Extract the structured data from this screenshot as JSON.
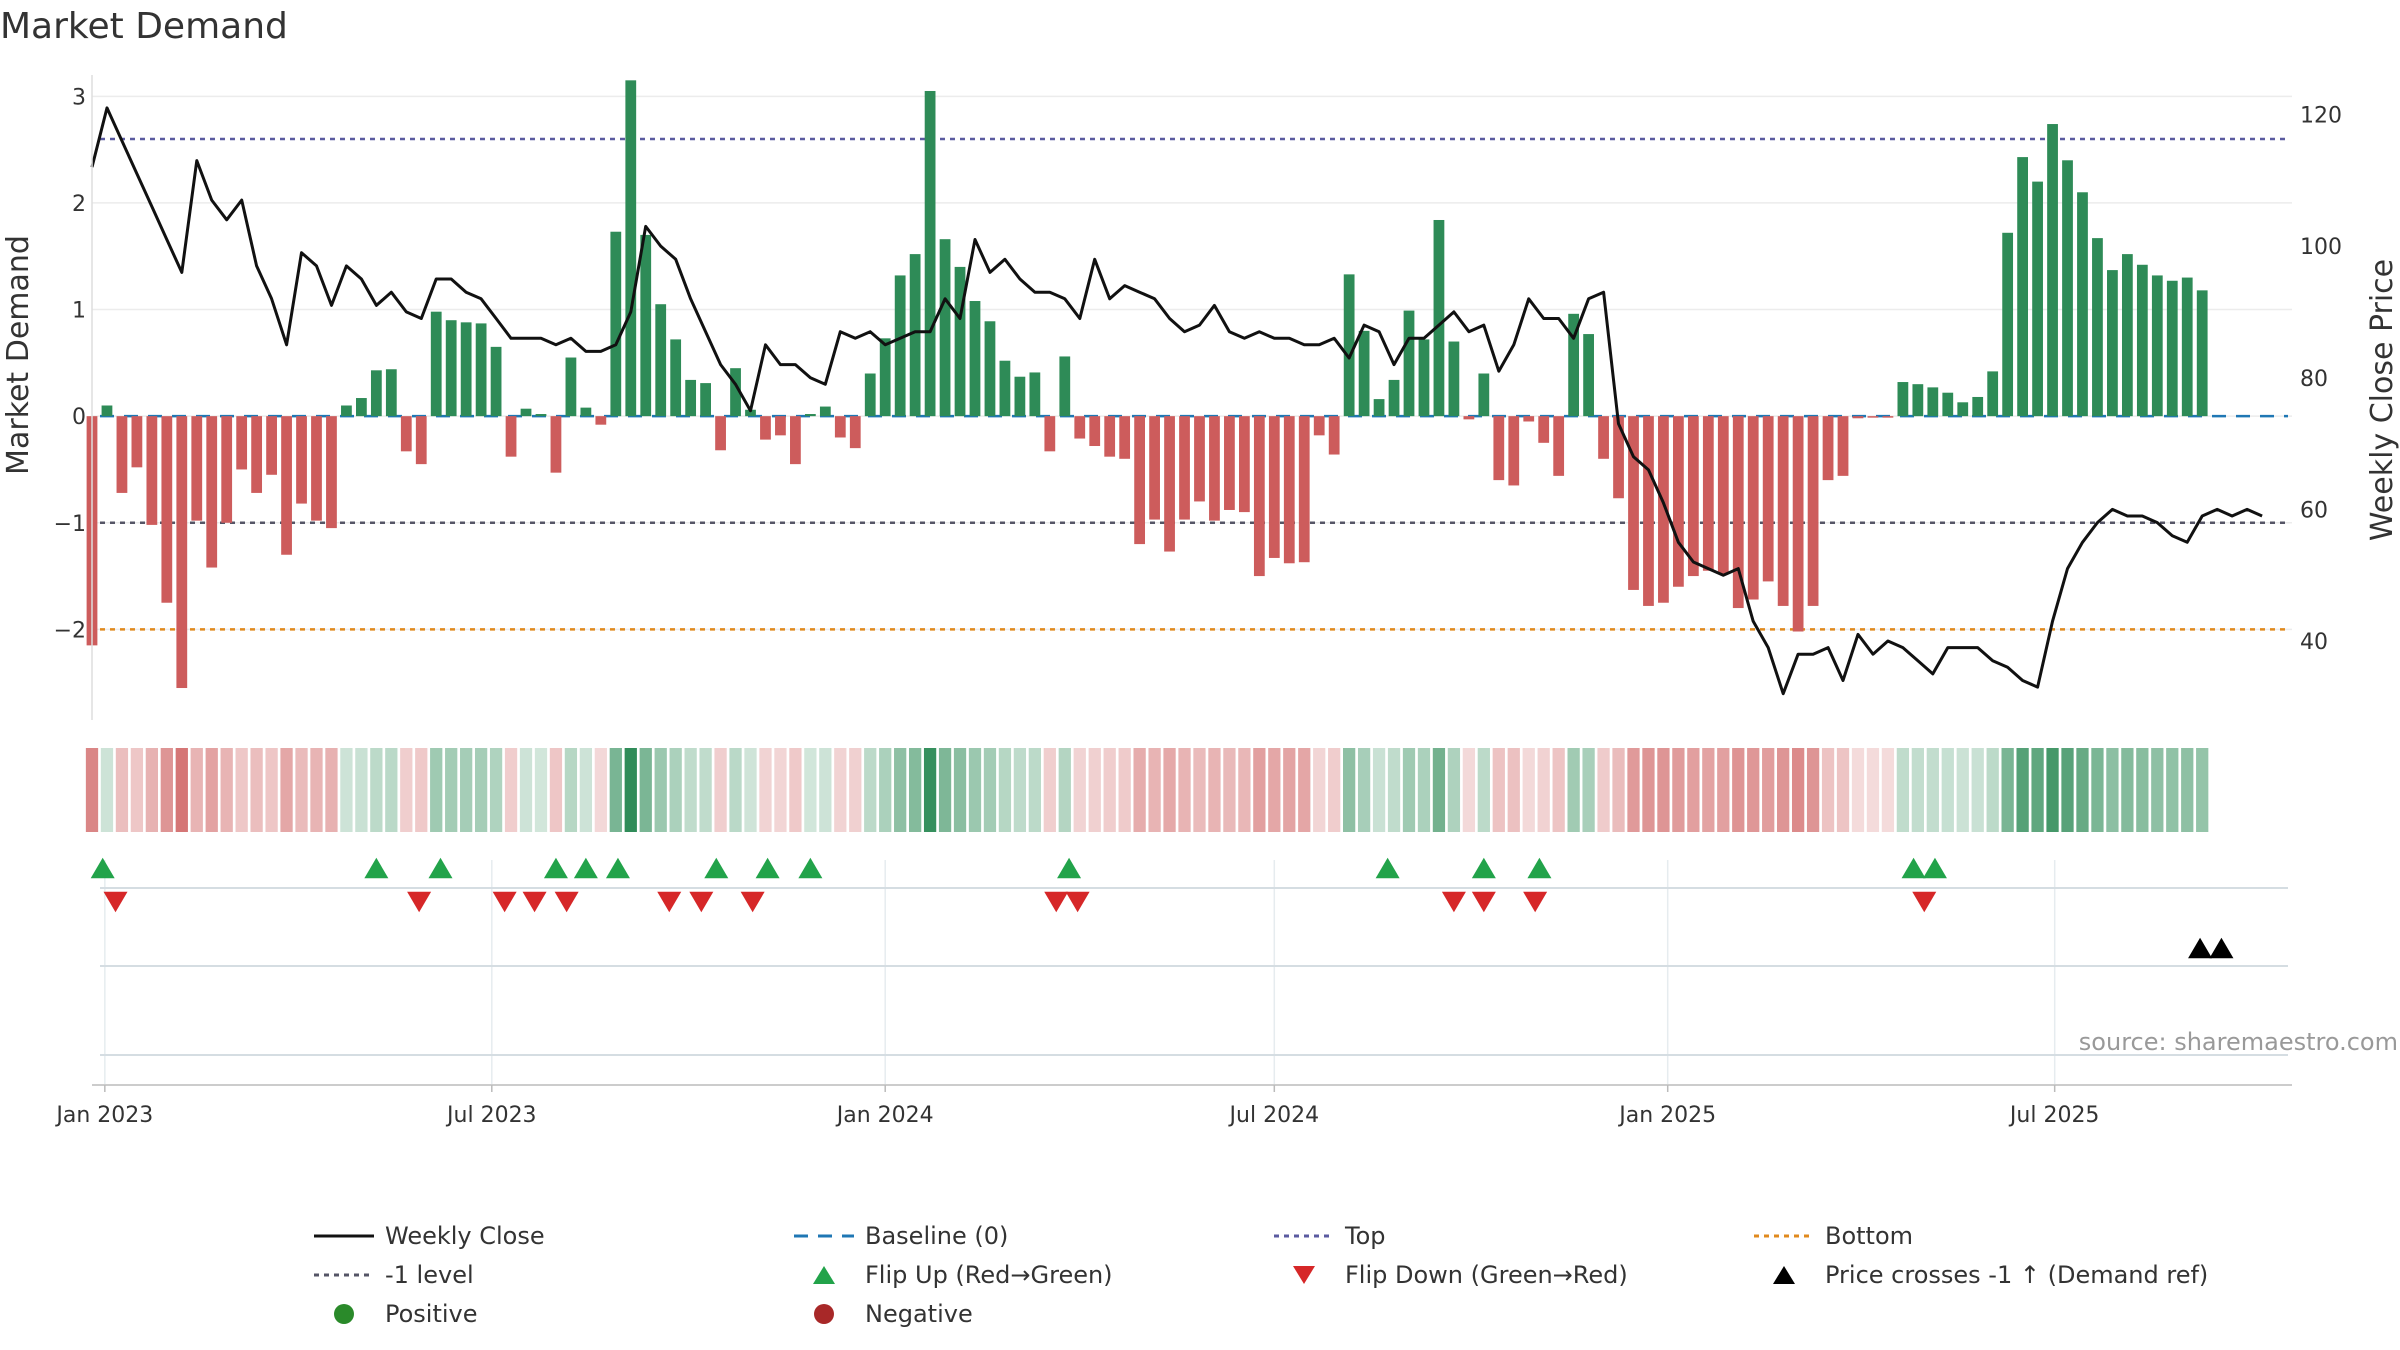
{
  "colors": {
    "positive": "#2e8b57",
    "negative": "#cd5c5c",
    "price": "#111111",
    "baseline": "#1f77b4",
    "top": "#5a5aa0",
    "bottom": "#e08a1e",
    "minus1": "#555566",
    "flip_up": "#22a34a",
    "flip_down": "#d62728",
    "cross": "#000000"
  },
  "chart_data": {
    "type": "bar",
    "title": "Market Demand",
    "ylabel": "Market Demand",
    "y2label": "Weekly Close Price",
    "source": "source: sharemaestro.com",
    "ylim": [
      -2.85,
      3.2
    ],
    "y2lim": [
      28,
      126
    ],
    "yticks": [
      "3",
      "2",
      "1",
      "0",
      "−1",
      "−2"
    ],
    "y2ticks": [
      "120",
      "100",
      "80",
      "60",
      "40"
    ],
    "xlim": [
      "2022-12-26",
      "2025-10-20"
    ],
    "xticks": [
      {
        "date": "2023-01-01",
        "label": "Jan 2023"
      },
      {
        "date": "2023-07-01",
        "label": "Jul 2023"
      },
      {
        "date": "2024-01-01",
        "label": "Jan 2024"
      },
      {
        "date": "2024-07-01",
        "label": "Jul 2024"
      },
      {
        "date": "2025-01-01",
        "label": "Jan 2025"
      },
      {
        "date": "2025-07-01",
        "label": "Jul 2025"
      }
    ],
    "reference_lines": {
      "top": 2.6,
      "bottom": -2.0,
      "minus1": -1.0,
      "baseline": 0
    },
    "start_date": "2022-12-26",
    "week_step_days": 7,
    "demand": [
      -2.15,
      0.1,
      -0.72,
      -0.48,
      -1.02,
      -1.75,
      -2.55,
      -0.98,
      -1.42,
      -1.0,
      -0.5,
      -0.72,
      -0.55,
      -1.3,
      -0.82,
      -0.98,
      -1.05,
      0.1,
      0.17,
      0.43,
      0.44,
      -0.33,
      -0.45,
      0.98,
      0.9,
      0.88,
      0.87,
      0.65,
      -0.38,
      0.07,
      0.02,
      -0.53,
      0.55,
      0.08,
      -0.08,
      1.73,
      3.15,
      1.7,
      1.05,
      0.72,
      0.34,
      0.31,
      -0.32,
      0.45,
      0.06,
      -0.22,
      -0.18,
      -0.45,
      0.02,
      0.09,
      -0.2,
      -0.3,
      0.4,
      0.73,
      1.32,
      1.52,
      3.05,
      1.66,
      1.4,
      1.08,
      0.89,
      0.52,
      0.37,
      0.41,
      -0.33,
      0.56,
      -0.21,
      -0.28,
      -0.38,
      -0.4,
      -1.2,
      -0.97,
      -1.27,
      -0.97,
      -0.8,
      -0.98,
      -0.88,
      -0.9,
      -1.5,
      -1.33,
      -1.38,
      -1.37,
      -0.18,
      -0.36,
      1.33,
      0.8,
      0.16,
      0.34,
      0.99,
      0.72,
      1.84,
      0.7,
      -0.03,
      0.4,
      -0.6,
      -0.65,
      -0.05,
      -0.25,
      -0.56,
      0.96,
      0.77,
      -0.4,
      -0.77,
      -1.63,
      -1.78,
      -1.75,
      -1.6,
      -1.5,
      -1.45,
      -1.48,
      -1.8,
      -1.72,
      -1.55,
      -1.78,
      -2.02,
      -1.78,
      -0.6,
      -0.56,
      -0.02,
      -0.01,
      -0.01,
      0.32,
      0.3,
      0.27,
      0.22,
      0.13,
      0.18,
      0.42,
      1.72,
      2.43,
      2.2,
      2.74,
      2.4,
      2.1,
      1.67,
      1.37,
      1.52,
      1.42,
      1.32,
      1.27,
      1.3,
      1.18
    ],
    "close": [
      112,
      121,
      116,
      111,
      106,
      101,
      96,
      113,
      107,
      104,
      107,
      97,
      92,
      85,
      99,
      97,
      91,
      97,
      95,
      91,
      93,
      90,
      89,
      95,
      95,
      93,
      92,
      89,
      86,
      86,
      86,
      85,
      86,
      84,
      84,
      85,
      90,
      103,
      100,
      98,
      92,
      87,
      82,
      79,
      75,
      85,
      82,
      82,
      80,
      79,
      87,
      86,
      87,
      85,
      86,
      87,
      87,
      92,
      89,
      101,
      96,
      98,
      95,
      93,
      93,
      92,
      89,
      98,
      92,
      94,
      93,
      92,
      89,
      87,
      88,
      91,
      87,
      86,
      87,
      86,
      86,
      85,
      85,
      86,
      83,
      88,
      87,
      82,
      86,
      86,
      88,
      90,
      87,
      88,
      81,
      85,
      92,
      89,
      89,
      86,
      92,
      93,
      73,
      68,
      66,
      61,
      55,
      52,
      51,
      50,
      51,
      43,
      39,
      32,
      38,
      38,
      39,
      34,
      41,
      38,
      40,
      39,
      37,
      35,
      39,
      39,
      39,
      37,
      36,
      34,
      33,
      43,
      51,
      55,
      58,
      60,
      59,
      59,
      58,
      56,
      55,
      59,
      60,
      59,
      60,
      59
    ],
    "flip_up_dates": [
      "2022-12-31",
      "2023-05-08",
      "2023-06-07",
      "2023-07-31",
      "2023-08-14",
      "2023-08-29",
      "2023-10-14",
      "2023-11-07",
      "2023-11-27",
      "2024-03-27",
      "2024-08-23",
      "2024-10-07",
      "2024-11-02",
      "2025-04-26",
      "2025-05-06"
    ],
    "flip_down_dates": [
      "2023-01-06",
      "2023-05-28",
      "2023-07-07",
      "2023-07-21",
      "2023-08-05",
      "2023-09-22",
      "2023-10-07",
      "2023-10-31",
      "2024-03-21",
      "2024-03-31",
      "2024-09-23",
      "2024-10-07",
      "2024-10-31",
      "2025-05-01"
    ],
    "cross_up_dates": [
      "2025-09-07",
      "2025-09-17"
    ]
  },
  "legend": [
    {
      "label": "Weekly Close",
      "symbol": "line-solid",
      "color": "#111111"
    },
    {
      "label": "Baseline (0)",
      "symbol": "line-dashed",
      "color": "#1f77b4"
    },
    {
      "label": "Top",
      "symbol": "line-dotted",
      "color": "#5a5aa0"
    },
    {
      "label": "Bottom",
      "symbol": "line-dotted",
      "color": "#e08a1e"
    },
    {
      "label": "-1 level",
      "symbol": "line-dotted",
      "color": "#555566"
    },
    {
      "label": "Flip Up (Red→Green)",
      "symbol": "triangle-up",
      "color": "#22a34a"
    },
    {
      "label": "Flip Down (Green→Red)",
      "symbol": "triangle-down",
      "color": "#d62728"
    },
    {
      "label": "Price crosses -1 ↑ (Demand ref)",
      "symbol": "triangle-up",
      "color": "#000000"
    },
    {
      "label": "Positive",
      "symbol": "dot",
      "color": "#2a8a2a"
    },
    {
      "label": "Negative",
      "symbol": "dot",
      "color": "#a82828"
    }
  ]
}
